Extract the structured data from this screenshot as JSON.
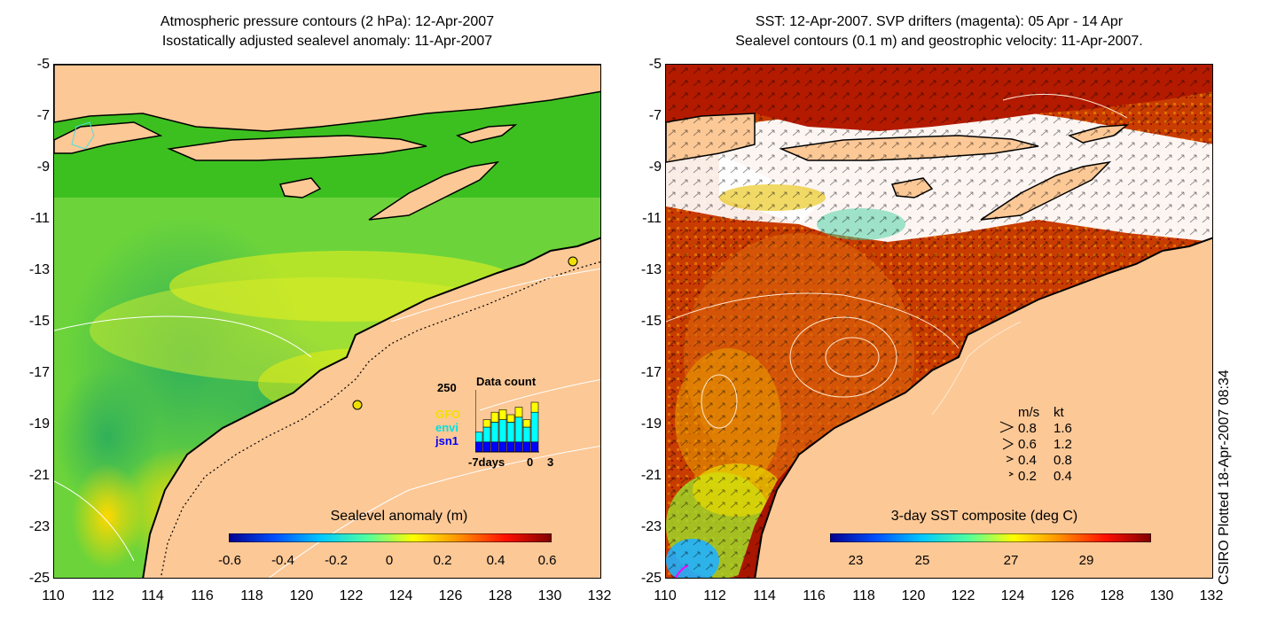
{
  "left_map": {
    "title_line1": "Atmospheric pressure contours (2 hPa): 12-Apr-2007",
    "title_line2": "Isostatically adjusted sealevel anomaly: 11-Apr-2007",
    "colorbar": {
      "label": "Sealevel anomaly (m)",
      "ticks": [
        "-0.6",
        "-0.4",
        "-0.2",
        "0",
        "0.2",
        "0.4",
        "0.6"
      ],
      "range": [
        -0.6,
        0.6
      ],
      "colormap": [
        "#00008f",
        "#0050ff",
        "#00c8ff",
        "#50ff9f",
        "#ffff00",
        "#ff9000",
        "#ff1000",
        "#800000"
      ]
    },
    "data_count": {
      "title": "Data count",
      "ymax_label": "250",
      "satellites": [
        {
          "name": "GFO",
          "color": "#ffff00"
        },
        {
          "name": "envi",
          "color": "#00ffff"
        },
        {
          "name": "jsn1",
          "color": "#0000ff"
        }
      ],
      "x_labels": [
        "-7days",
        "0",
        "3"
      ],
      "ymax": 250,
      "bars": [
        {
          "jsn1": 40,
          "envi": 40,
          "gfo": 0
        },
        {
          "jsn1": 40,
          "envi": 60,
          "gfo": 30
        },
        {
          "jsn1": 40,
          "envi": 80,
          "gfo": 40
        },
        {
          "jsn1": 40,
          "envi": 90,
          "gfo": 40
        },
        {
          "jsn1": 40,
          "envi": 80,
          "gfo": 30
        },
        {
          "jsn1": 40,
          "envi": 100,
          "gfo": 40
        },
        {
          "jsn1": 40,
          "envi": 60,
          "gfo": 30
        },
        {
          "jsn1": 40,
          "envi": 120,
          "gfo": 40
        }
      ]
    }
  },
  "right_map": {
    "title_line1": "SST: 12-Apr-2007. SVP drifters (magenta): 05 Apr - 14 Apr",
    "title_line2": "Sealevel contours (0.1 m) and geostrophic velocity: 11-Apr-2007.",
    "colorbar": {
      "label": "3-day SST composite (deg C)",
      "ticks": [
        "23",
        "25",
        "27",
        "29"
      ],
      "range": [
        22.2,
        29.8
      ],
      "colormap": [
        "#00008f",
        "#0050ff",
        "#00c8ff",
        "#50ff9f",
        "#ffff00",
        "#ff9000",
        "#ff1000",
        "#800000"
      ]
    },
    "velocity_legend": {
      "header_ms": "m/s",
      "header_kt": "kt",
      "rows": [
        {
          "ms": "0.8",
          "kt": "1.6"
        },
        {
          "ms": "0.6",
          "kt": "1.2"
        },
        {
          "ms": "0.4",
          "kt": "0.8"
        },
        {
          "ms": "0.2",
          "kt": "0.4"
        }
      ]
    }
  },
  "axes": {
    "y_ticks": [
      "-5",
      "-7",
      "-9",
      "-11",
      "-13",
      "-15",
      "-17",
      "-19",
      "-21",
      "-23",
      "-25"
    ],
    "x_ticks": [
      "110",
      "112",
      "114",
      "116",
      "118",
      "120",
      "122",
      "124",
      "126",
      "128",
      "130",
      "132"
    ],
    "lat_range": [
      -25,
      -5
    ],
    "lon_range": [
      110,
      132
    ]
  },
  "colors": {
    "land": "#fcc896",
    "ocean_green": "#4ccc28",
    "sst_dark_red": "#b31a00"
  },
  "credit": "CSIRO Plotted 18-Apr-2007 08:34"
}
